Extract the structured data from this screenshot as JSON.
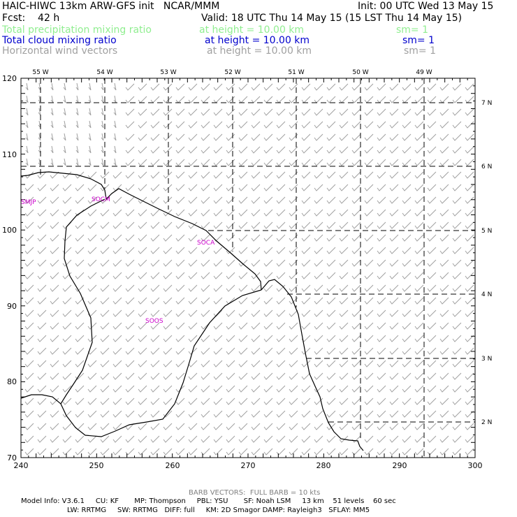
{
  "header": {
    "line1_left": "HAIC-HIWC 13km ARW-GFS init   NCAR/MMM",
    "line1_right": "Init: 00 UTC Wed 13 May 15",
    "fcst": "Fcst:    42 h",
    "valid": "Valid: 18 UTC Thu 14 May 15 (15 LST Thu 14 May 15)",
    "fields": [
      {
        "name": "Total precipitation mixing ratio",
        "height": "at height = 10.00 km",
        "sm": "sm= 1",
        "color": "#90ee90"
      },
      {
        "name": "Total cloud mixing ratio",
        "height": "at height = 10.00 km",
        "sm": "sm= 1",
        "color": "#0000cd"
      },
      {
        "name": "Horizontal wind vectors",
        "height": "at height = 10.00 km",
        "sm": "sm= 1",
        "color": "#a0a0a0"
      }
    ]
  },
  "map": {
    "x_ticks": [
      "240",
      "250",
      "260",
      "270",
      "280",
      "290",
      "300"
    ],
    "y_ticks": [
      "70",
      "80",
      "90",
      "100",
      "110",
      "120"
    ],
    "lon_labels": [
      "55 W",
      "54 W",
      "53 W",
      "52 W",
      "51 W",
      "50 W",
      "49 W"
    ],
    "lat_labels": [
      "7 N",
      "6 N",
      "5 N",
      "4 N",
      "3 N",
      "2 N"
    ],
    "stations": [
      "SMJP",
      "SOCM",
      "SOCA",
      "SOOS"
    ],
    "barb_color": "#a0a0a0",
    "station_color": "#cc00cc",
    "coast_color": "#000000"
  },
  "footer": {
    "barb": "BARB VECTORS:  FULL BARB = 10 kts",
    "model1": "Model Info: V3.6.1     CU: KF       MP: Thompson     PBL: YSU       SF: Noah LSM     13 km    51 levels    60 sec",
    "model2": "LW: RRTMG     SW: RRTMG   DIFF: full     KM: 2D Smagor DAMP: Rayleigh3   SFLAY: MM5"
  }
}
